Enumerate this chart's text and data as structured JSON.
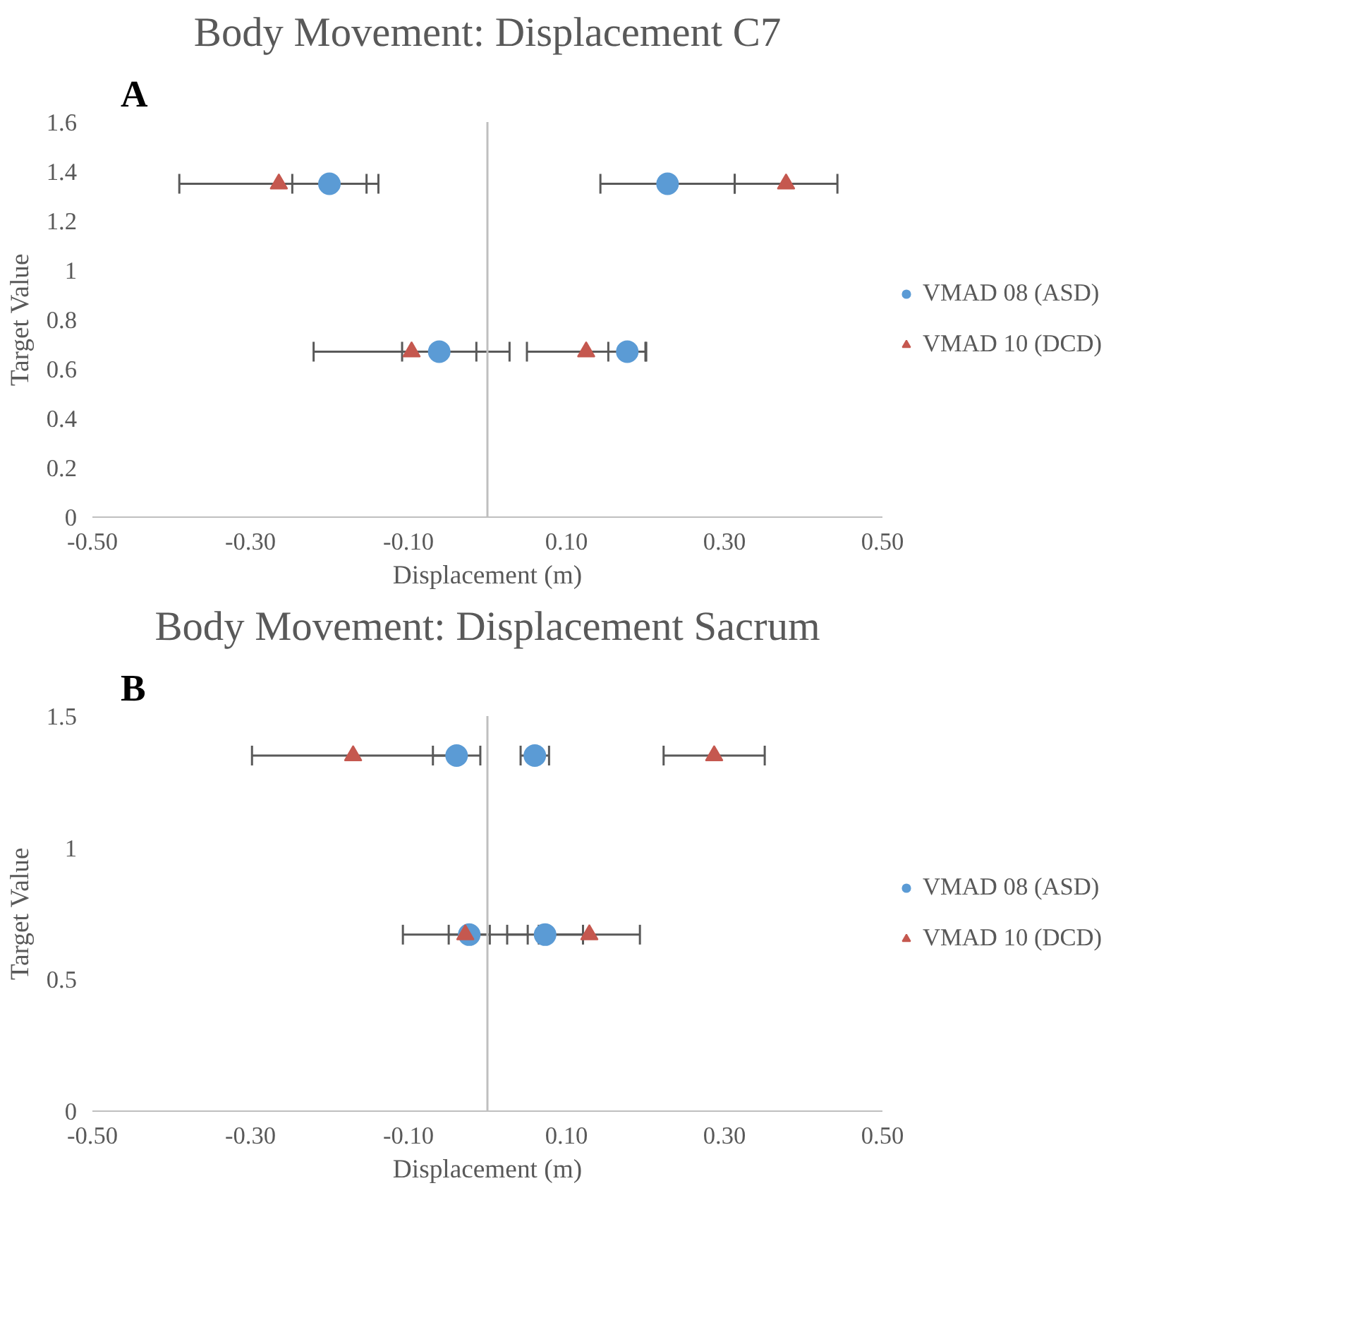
{
  "chart_data": [
    {
      "type": "scatter",
      "title": "Body Movement: Displacement C7",
      "xlabel": "Displacement (m)",
      "ylabel": "Target Value",
      "annotations": [
        "A"
      ],
      "series": [
        {
          "name": "VMAD 08 (ASD)",
          "color": "#5b9bd5",
          "marker": "circle",
          "x": [
            -0.2,
            0.228,
            -0.061,
            0.177
          ],
          "values": [
            1.35,
            1.35,
            0.67,
            0.67
          ],
          "xerrors": [
            0.047,
            0.085,
            0.047,
            0.024
          ]
        },
        {
          "name": "VMAD 10 (DCD)",
          "color": "#c5584f",
          "marker": "triangle",
          "x": [
            -0.264,
            0.378,
            -0.096,
            0.125
          ],
          "values": [
            1.35,
            1.35,
            0.67,
            0.67
          ],
          "xerrors": [
            0.126,
            0.065,
            0.124,
            0.075
          ]
        }
      ],
      "xlim": [
        -0.5,
        0.5
      ],
      "xticks": [
        {
          "value": -0.5,
          "label": "-0.50"
        },
        {
          "value": -0.3,
          "label": "-0.30"
        },
        {
          "value": -0.1,
          "label": "-0.10"
        },
        {
          "value": 0.1,
          "label": "0.10"
        },
        {
          "value": 0.3,
          "label": "0.30"
        },
        {
          "value": 0.5,
          "label": "0.50"
        }
      ],
      "ylim": [
        0,
        1.6
      ],
      "yticks": [
        0,
        0.2,
        0.4,
        0.6,
        0.8,
        1,
        1.2,
        1.4,
        1.6
      ],
      "grid": false,
      "legend": "right"
    },
    {
      "type": "scatter",
      "title": "Body Movement: Displacement Sacrum",
      "xlabel": "Displacement (m)",
      "ylabel": "Target Value",
      "annotations": [
        "B"
      ],
      "series": [
        {
          "name": "VMAD 08 (ASD)",
          "color": "#5b9bd5",
          "marker": "circle",
          "x": [
            -0.039,
            0.06,
            -0.023,
            0.073
          ],
          "values": [
            1.35,
            1.35,
            0.67,
            0.67
          ],
          "xerrors": [
            0.03,
            0.018,
            0.026,
            0.048
          ]
        },
        {
          "name": "VMAD 10 (DCD)",
          "color": "#c5584f",
          "marker": "triangle",
          "x": [
            -0.17,
            0.287,
            -0.028,
            0.129
          ],
          "values": [
            1.35,
            1.35,
            0.67,
            0.67
          ],
          "xerrors": [
            0.128,
            0.064,
            0.079,
            0.064
          ]
        }
      ],
      "xlim": [
        -0.5,
        0.5
      ],
      "xticks": [
        {
          "value": -0.5,
          "label": "-0.50"
        },
        {
          "value": -0.3,
          "label": "-0.30"
        },
        {
          "value": -0.1,
          "label": "-0.10"
        },
        {
          "value": 0.1,
          "label": "0.10"
        },
        {
          "value": 0.3,
          "label": "0.30"
        },
        {
          "value": 0.5,
          "label": "0.50"
        }
      ],
      "ylim": [
        0,
        1.5
      ],
      "yticks": [
        0,
        0.5,
        1,
        1.5
      ],
      "grid": false,
      "legend": "right"
    }
  ]
}
